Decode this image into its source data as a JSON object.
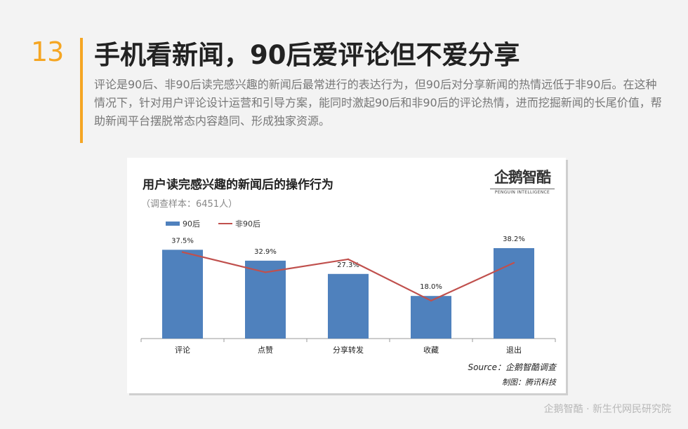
{
  "page": {
    "number": "13",
    "headline": "手机看新闻，90后爱评论但不爱分享",
    "description": "评论是90后、非90后读完感兴趣的新闻后最常进行的表达行为，但90后对分享新闻的热情远低于非90后。在这种情况下，针对用户评论设计运营和引导方案，能同时激起90后和非90后的评论热情，进而挖掘新闻的长尾价值，帮助新闻平台摆脱常态内容趋同、形成独家资源。"
  },
  "logo": {
    "mark": "企鹅智酷",
    "sub": "PENGUIN INTELLIGENCE"
  },
  "chart_data": {
    "type": "bar",
    "title": "用户读完感兴趣的新闻后的操作行为",
    "subtitle": "（调查样本：6451人）",
    "categories": [
      "评论",
      "点赞",
      "分享转发",
      "收藏",
      "退出"
    ],
    "series": [
      {
        "name": "90后",
        "type": "bar",
        "color": "#4f81bd",
        "values": [
          37.5,
          32.9,
          27.3,
          18.0,
          38.2
        ],
        "labels": [
          "37.5%",
          "32.9%",
          "27.3%",
          "18.0%",
          "38.2%"
        ]
      },
      {
        "name": "非90后",
        "type": "line",
        "color": "#c0504d",
        "values": [
          36.5,
          28.0,
          33.5,
          16.0,
          32.0
        ]
      }
    ],
    "ylim": [
      0,
      45
    ],
    "legend": "top-left",
    "grid": false
  },
  "source": "Source：企鹅智酷调查",
  "credit": "制图：腾讯科技",
  "footer_brand": "企鹅智酷 · 新生代网民研究院"
}
